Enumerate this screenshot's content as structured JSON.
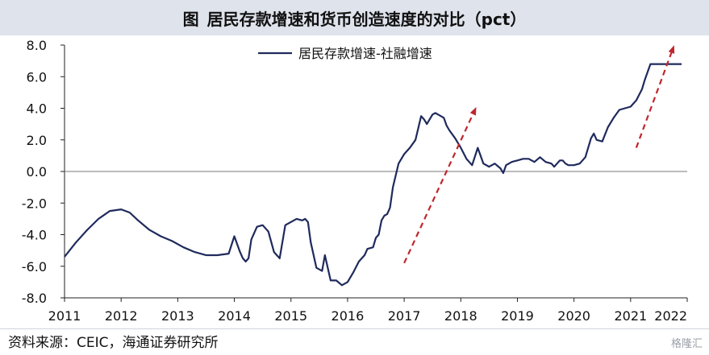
{
  "figure": {
    "label": "图",
    "title": "居民存款增速和货币创造速度的对比（pct）",
    "source": "资料来源：CEIC，海通证券研究所",
    "watermark": "格隆汇"
  },
  "chart_data": {
    "type": "line",
    "ylim": [
      -8,
      8
    ],
    "xlim": [
      2011,
      2022
    ],
    "y_ticks": [
      "8.0",
      "6.0",
      "4.0",
      "2.0",
      "0.0",
      "-2.0",
      "-4.0",
      "-6.0",
      "-8.0"
    ],
    "x_ticks": [
      "2011",
      "2012",
      "2013",
      "2014",
      "2015",
      "2016",
      "2017",
      "2018",
      "2019",
      "2020",
      "2021",
      "2022"
    ],
    "legend_position": "top-center",
    "grid": false,
    "zero_line": true,
    "series": [
      {
        "name": "居民存款增速-社融增速",
        "color": "#1f2a5c",
        "x": [
          2011.0,
          2011.2,
          2011.4,
          2011.6,
          2011.8,
          2012.0,
          2012.15,
          2012.3,
          2012.5,
          2012.7,
          2012.9,
          2013.1,
          2013.3,
          2013.5,
          2013.7,
          2013.9,
          2014.0,
          2014.1,
          2014.15,
          2014.2,
          2014.25,
          2014.3,
          2014.4,
          2014.5,
          2014.6,
          2014.7,
          2014.8,
          2014.9,
          2015.0,
          2015.1,
          2015.2,
          2015.25,
          2015.3,
          2015.35,
          2015.45,
          2015.55,
          2015.6,
          2015.7,
          2015.8,
          2015.9,
          2016.0,
          2016.1,
          2016.2,
          2016.3,
          2016.35,
          2016.45,
          2016.5,
          2016.55,
          2016.6,
          2016.65,
          2016.7,
          2016.75,
          2016.8,
          2016.9,
          2017.0,
          2017.1,
          2017.2,
          2017.3,
          2017.35,
          2017.4,
          2017.5,
          2017.55,
          2017.6,
          2017.7,
          2017.75,
          2017.8,
          2017.9,
          2018.0,
          2018.1,
          2018.2,
          2018.3,
          2018.35,
          2018.4,
          2018.5,
          2018.6,
          2018.7,
          2018.75,
          2018.8,
          2018.9,
          2019.0,
          2019.1,
          2019.2,
          2019.3,
          2019.4,
          2019.5,
          2019.6,
          2019.65,
          2019.7,
          2019.75,
          2019.8,
          2019.85,
          2019.9,
          2019.95,
          2020.0,
          2020.1,
          2020.2,
          2020.3,
          2020.35,
          2020.4,
          2020.5,
          2020.6,
          2020.7,
          2020.8,
          2020.9,
          2021.0,
          2021.1,
          2021.2,
          2021.25,
          2021.3,
          2021.35,
          2021.4,
          2021.45,
          2021.5,
          2021.55,
          2021.6,
          2021.65,
          2021.7,
          2021.75,
          2021.8,
          2021.9
        ],
        "y": [
          -5.4,
          -4.5,
          -3.7,
          -3.0,
          -2.5,
          -2.4,
          -2.6,
          -3.1,
          -3.7,
          -4.1,
          -4.4,
          -4.8,
          -5.1,
          -5.3,
          -5.3,
          -5.2,
          -4.1,
          -5.1,
          -5.5,
          -5.7,
          -5.5,
          -4.3,
          -3.5,
          -3.4,
          -3.8,
          -5.1,
          -5.5,
          -3.4,
          -3.2,
          -3.0,
          -3.1,
          -3.0,
          -3.2,
          -4.5,
          -6.1,
          -6.3,
          -5.3,
          -6.9,
          -6.9,
          -7.2,
          -7.0,
          -6.4,
          -5.7,
          -5.3,
          -4.9,
          -4.8,
          -4.2,
          -4.0,
          -3.1,
          -2.8,
          -2.7,
          -2.3,
          -1.0,
          0.5,
          1.1,
          1.5,
          2.0,
          3.5,
          3.3,
          3.0,
          3.6,
          3.7,
          3.6,
          3.4,
          2.9,
          2.6,
          2.1,
          1.5,
          0.8,
          0.4,
          1.5,
          1.0,
          0.5,
          0.3,
          0.5,
          0.2,
          -0.1,
          0.4,
          0.6,
          0.7,
          0.8,
          0.8,
          0.6,
          0.9,
          0.6,
          0.5,
          0.3,
          0.5,
          0.7,
          0.7,
          0.5,
          0.4,
          0.4,
          0.4,
          0.5,
          0.9,
          2.1,
          2.4,
          2.0,
          1.9,
          2.8,
          3.4,
          3.9,
          4.0,
          4.1,
          4.5,
          5.2,
          5.8,
          6.3,
          6.8,
          6.8,
          6.8,
          6.8,
          6.8,
          6.8,
          6.8,
          6.8,
          6.8,
          6.8,
          6.8
        ]
      }
    ],
    "annotations": [
      {
        "type": "dashed-arrow",
        "color": "#c0272d",
        "from": [
          2017.0,
          -5.8
        ],
        "to": [
          2018.25,
          3.9
        ]
      },
      {
        "type": "dashed-arrow",
        "color": "#c0272d",
        "from": [
          2021.1,
          1.5
        ],
        "to": [
          2021.75,
          7.8
        ]
      }
    ]
  }
}
